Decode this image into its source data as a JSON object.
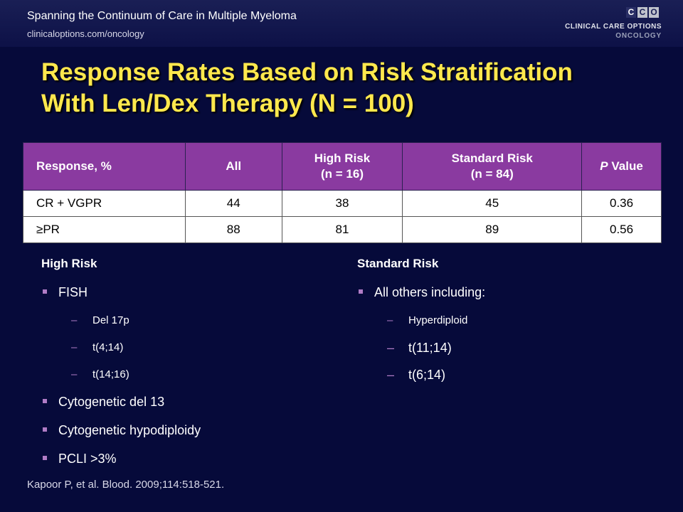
{
  "header": {
    "title": "Spanning the Continuum of Care in Multiple Myeloma",
    "url": "clinicaloptions.com/oncology"
  },
  "logo": {
    "boxes": [
      "C",
      "C",
      "O"
    ],
    "line1": "CLINICAL CARE OPTIONS",
    "line2": "ONCOLOGY"
  },
  "slide": {
    "title_line1": "Response Rates Based on Risk Stratification",
    "title_line2": "With Len/Dex Therapy (N = 100)"
  },
  "table": {
    "headers": [
      {
        "line1": "Response, %",
        "line2": ""
      },
      {
        "line1": "All",
        "line2": ""
      },
      {
        "line1": "High Risk",
        "line2": "(n = 16)"
      },
      {
        "line1": "Standard Risk",
        "line2": "(n = 84)"
      },
      {
        "line1_italic": "P",
        "line1_rest": " Value",
        "line2": ""
      }
    ],
    "rows": [
      [
        "CR + VGPR",
        "44",
        "38",
        "45",
        "0.36"
      ],
      [
        "≥PR",
        "88",
        "81",
        "89",
        "0.56"
      ]
    ]
  },
  "left_column": {
    "heading": "High Risk",
    "bullets": [
      {
        "text": "FISH",
        "subs": [
          "Del 17p",
          "t(4;14)",
          "t(14;16)"
        ]
      },
      {
        "text": "Cytogenetic del 13",
        "subs": []
      },
      {
        "text": "Cytogenetic hypodiploidy",
        "subs": []
      },
      {
        "text": "PCLI >3%",
        "subs": []
      }
    ]
  },
  "right_column": {
    "heading": "Standard Risk",
    "bullets": [
      {
        "text": "All others including:",
        "subs": [
          "Hyperdiploid",
          "t(11;14)",
          "t(6;14)"
        ]
      }
    ]
  },
  "citation": "Kapoor P, et al. Blood. 2009;114:518-521.",
  "colors": {
    "background": "#060a3a",
    "title": "#ffe84d",
    "table_header": "#8a3aa0",
    "bullet_accent": "#b07cc6"
  }
}
